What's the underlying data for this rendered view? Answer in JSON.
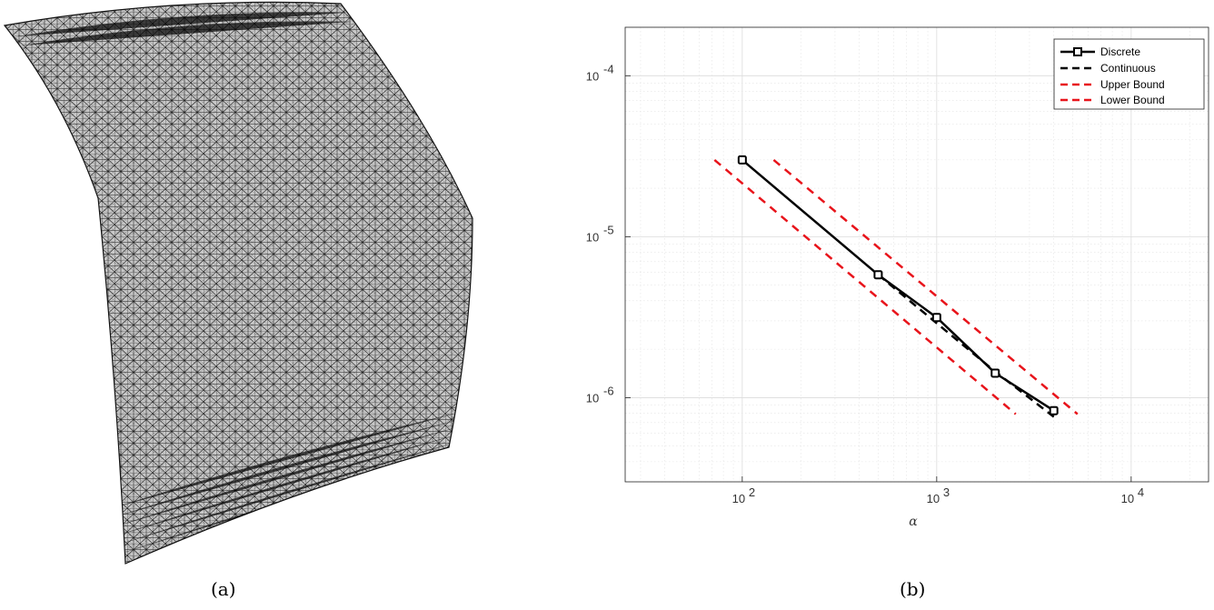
{
  "panels": {
    "a_label": "(a)",
    "b_label": "(b)"
  },
  "colors": {
    "discrete": "#000000",
    "continuous": "#000000",
    "upper_bound": "#e8141b",
    "lower_bound": "#e8141b",
    "mesh_fill": "#c8c8c8",
    "mesh_edge": "#1a1a1a"
  },
  "chart_data": {
    "type": "line",
    "title": "",
    "xlabel": "α",
    "ylabel": "",
    "xscale": "log",
    "yscale": "log",
    "xlim": [
      25,
      25000
    ],
    "ylim": [
      3e-07,
      0.0002
    ],
    "grid": true,
    "legend_position": "top-right",
    "x_ticks": [
      {
        "value": 100,
        "base": "10",
        "exp": "2"
      },
      {
        "value": 1000,
        "base": "10",
        "exp": "3"
      },
      {
        "value": 10000,
        "base": "10",
        "exp": "4"
      }
    ],
    "y_ticks": [
      {
        "value": 1e-06,
        "base": "10",
        "exp": "-6"
      },
      {
        "value": 1e-05,
        "base": "10",
        "exp": "-5"
      },
      {
        "value": 0.0001,
        "base": "10",
        "exp": "-4"
      }
    ],
    "series": [
      {
        "name": "Discrete",
        "style": "solid-marker",
        "x": [
          100,
          500,
          1000,
          2000,
          4000
        ],
        "y": [
          3e-05,
          5.8e-06,
          3.15e-06,
          1.42e-06,
          8.3e-07
        ]
      },
      {
        "name": "Continuous",
        "style": "dashed",
        "x": [
          500,
          1000,
          2000,
          4000
        ],
        "y": [
          5.8e-06,
          2.9e-06,
          1.45e-06,
          7.6e-07
        ]
      },
      {
        "name": "Upper Bound",
        "style": "dashed",
        "x": [
          145,
          5300
        ],
        "y": [
          3e-05,
          7.9e-07
        ]
      },
      {
        "name": "Lower Bound",
        "style": "dashed",
        "x": [
          72,
          2550
        ],
        "y": [
          3e-05,
          7.9e-07
        ]
      }
    ]
  }
}
